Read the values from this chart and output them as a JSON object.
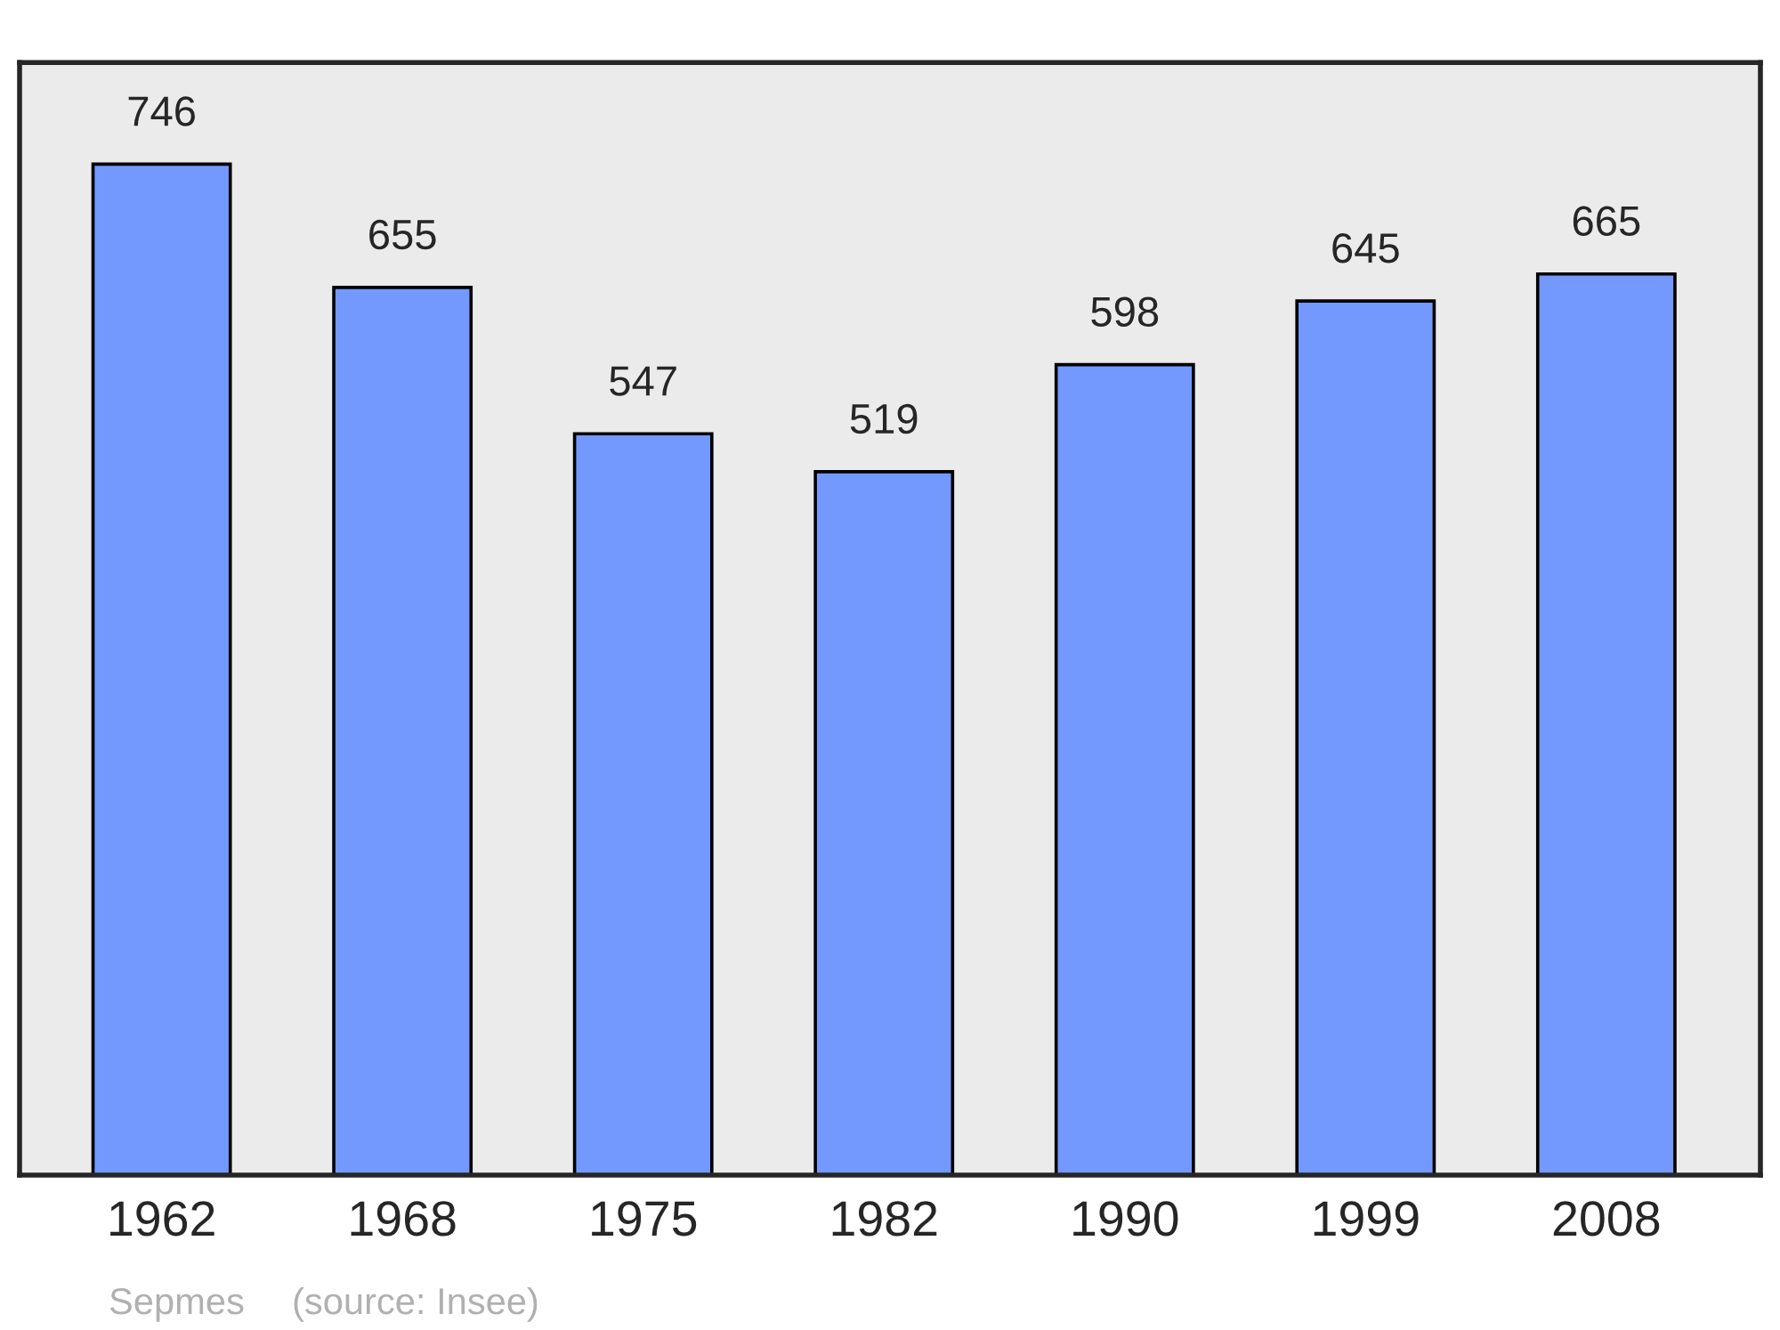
{
  "chart_data": {
    "type": "bar",
    "categories": [
      "1962",
      "1968",
      "1975",
      "1982",
      "1990",
      "1999",
      "2008"
    ],
    "values": [
      746,
      655,
      547,
      519,
      598,
      645,
      665
    ],
    "color": "#7399ff",
    "ylim": [
      0,
      821
    ],
    "data_labels": true,
    "tick_labels": "x",
    "grid": false,
    "annotations": [
      "Sepmes",
      "(source: Insee)"
    ]
  }
}
